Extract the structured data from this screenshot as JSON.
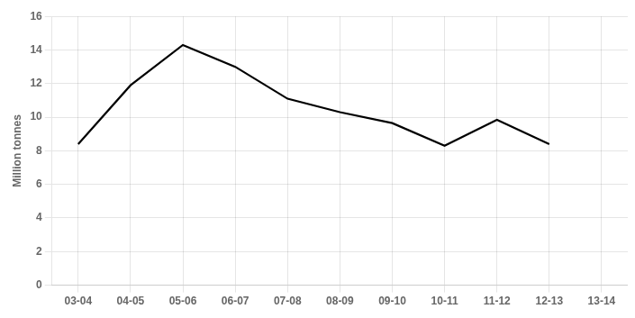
{
  "chart_data": {
    "type": "line",
    "categories": [
      "03-04",
      "04-05",
      "05-06",
      "06-07",
      "07-08",
      "08-09",
      "09-10",
      "10-11",
      "11-12",
      "12-13",
      "13-14"
    ],
    "values": [
      8.4,
      11.9,
      14.3,
      13.0,
      11.1,
      10.3,
      9.65,
      8.3,
      9.85,
      8.4,
      null
    ],
    "color": "#000000",
    "ylabel": "Million tonnes",
    "ylim": [
      0,
      16
    ],
    "yticks": [
      0,
      2,
      4,
      6,
      8,
      10,
      12,
      14,
      16
    ],
    "grid": true
  }
}
